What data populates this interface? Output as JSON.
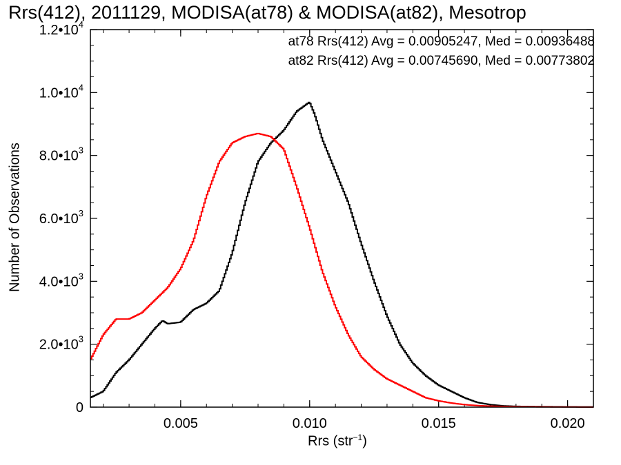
{
  "chart_data": {
    "type": "line",
    "title": "Rrs(412), 2011129, MODISA(at78) & MODISA(at82), Mesotrop",
    "xlabel_base": "Rrs (str",
    "xlabel_sup": "−1",
    "xlabel_close": ")",
    "ylabel": "Number of Observations",
    "xlim": [
      0.0015,
      0.021
    ],
    "ylim": [
      0,
      12000
    ],
    "x_ticks": [
      0.005,
      0.01,
      0.015,
      0.02
    ],
    "x_tick_labels": [
      "0.005",
      "0.010",
      "0.015",
      "0.020"
    ],
    "y_ticks": [
      0,
      2000,
      4000,
      6000,
      8000,
      10000,
      12000
    ],
    "y_tick_labels": [
      {
        "mant": "0",
        "exp": ""
      },
      {
        "mant": "2.0•10",
        "exp": "3"
      },
      {
        "mant": "4.0•10",
        "exp": "3"
      },
      {
        "mant": "6.0•10",
        "exp": "3"
      },
      {
        "mant": "8.0•10",
        "exp": "3"
      },
      {
        "mant": "1.0•10",
        "exp": "4"
      },
      {
        "mant": "1.2•10",
        "exp": "4"
      }
    ],
    "legend": [
      {
        "text": "at78 Rrs(412) Avg = 0.00905247, Med = 0.00936488",
        "color": "#000000"
      },
      {
        "text": "at82 Rrs(412) Avg = 0.00745690, Med = 0.00773802",
        "color": "#ff0000"
      }
    ],
    "series": [
      {
        "color": "#000000",
        "x": [
          0.0015,
          0.002,
          0.0025,
          0.003,
          0.0035,
          0.004,
          0.0043,
          0.0045,
          0.005,
          0.0055,
          0.006,
          0.0065,
          0.007,
          0.0075,
          0.008,
          0.0085,
          0.009,
          0.0095,
          0.01,
          0.0102,
          0.0105,
          0.011,
          0.0115,
          0.012,
          0.0125,
          0.013,
          0.0135,
          0.014,
          0.0145,
          0.015,
          0.0155,
          0.016,
          0.0165,
          0.017,
          0.0175,
          0.018,
          0.019,
          0.02,
          0.021
        ],
        "y": [
          300,
          500,
          1100,
          1500,
          2000,
          2500,
          2750,
          2650,
          2700,
          3100,
          3300,
          3700,
          4900,
          6500,
          7800,
          8400,
          8800,
          9400,
          9700,
          9300,
          8500,
          7500,
          6500,
          5200,
          4000,
          2900,
          2000,
          1400,
          1000,
          700,
          500,
          300,
          150,
          80,
          40,
          25,
          15,
          8,
          5
        ]
      },
      {
        "color": "#ff0000",
        "x": [
          0.0015,
          0.002,
          0.0025,
          0.003,
          0.0035,
          0.004,
          0.0045,
          0.005,
          0.0055,
          0.006,
          0.0065,
          0.007,
          0.0075,
          0.008,
          0.0085,
          0.009,
          0.0095,
          0.01,
          0.0105,
          0.011,
          0.0115,
          0.012,
          0.0125,
          0.013,
          0.0135,
          0.014,
          0.0145,
          0.015,
          0.0155,
          0.016,
          0.0165,
          0.017,
          0.018,
          0.019,
          0.02,
          0.021
        ],
        "y": [
          1500,
          2300,
          2800,
          2800,
          3000,
          3400,
          3800,
          4400,
          5300,
          6700,
          7800,
          8400,
          8600,
          8700,
          8600,
          8200,
          7000,
          5700,
          4300,
          3200,
          2300,
          1600,
          1200,
          900,
          700,
          500,
          300,
          200,
          130,
          80,
          50,
          30,
          15,
          8,
          5,
          3
        ]
      }
    ]
  }
}
